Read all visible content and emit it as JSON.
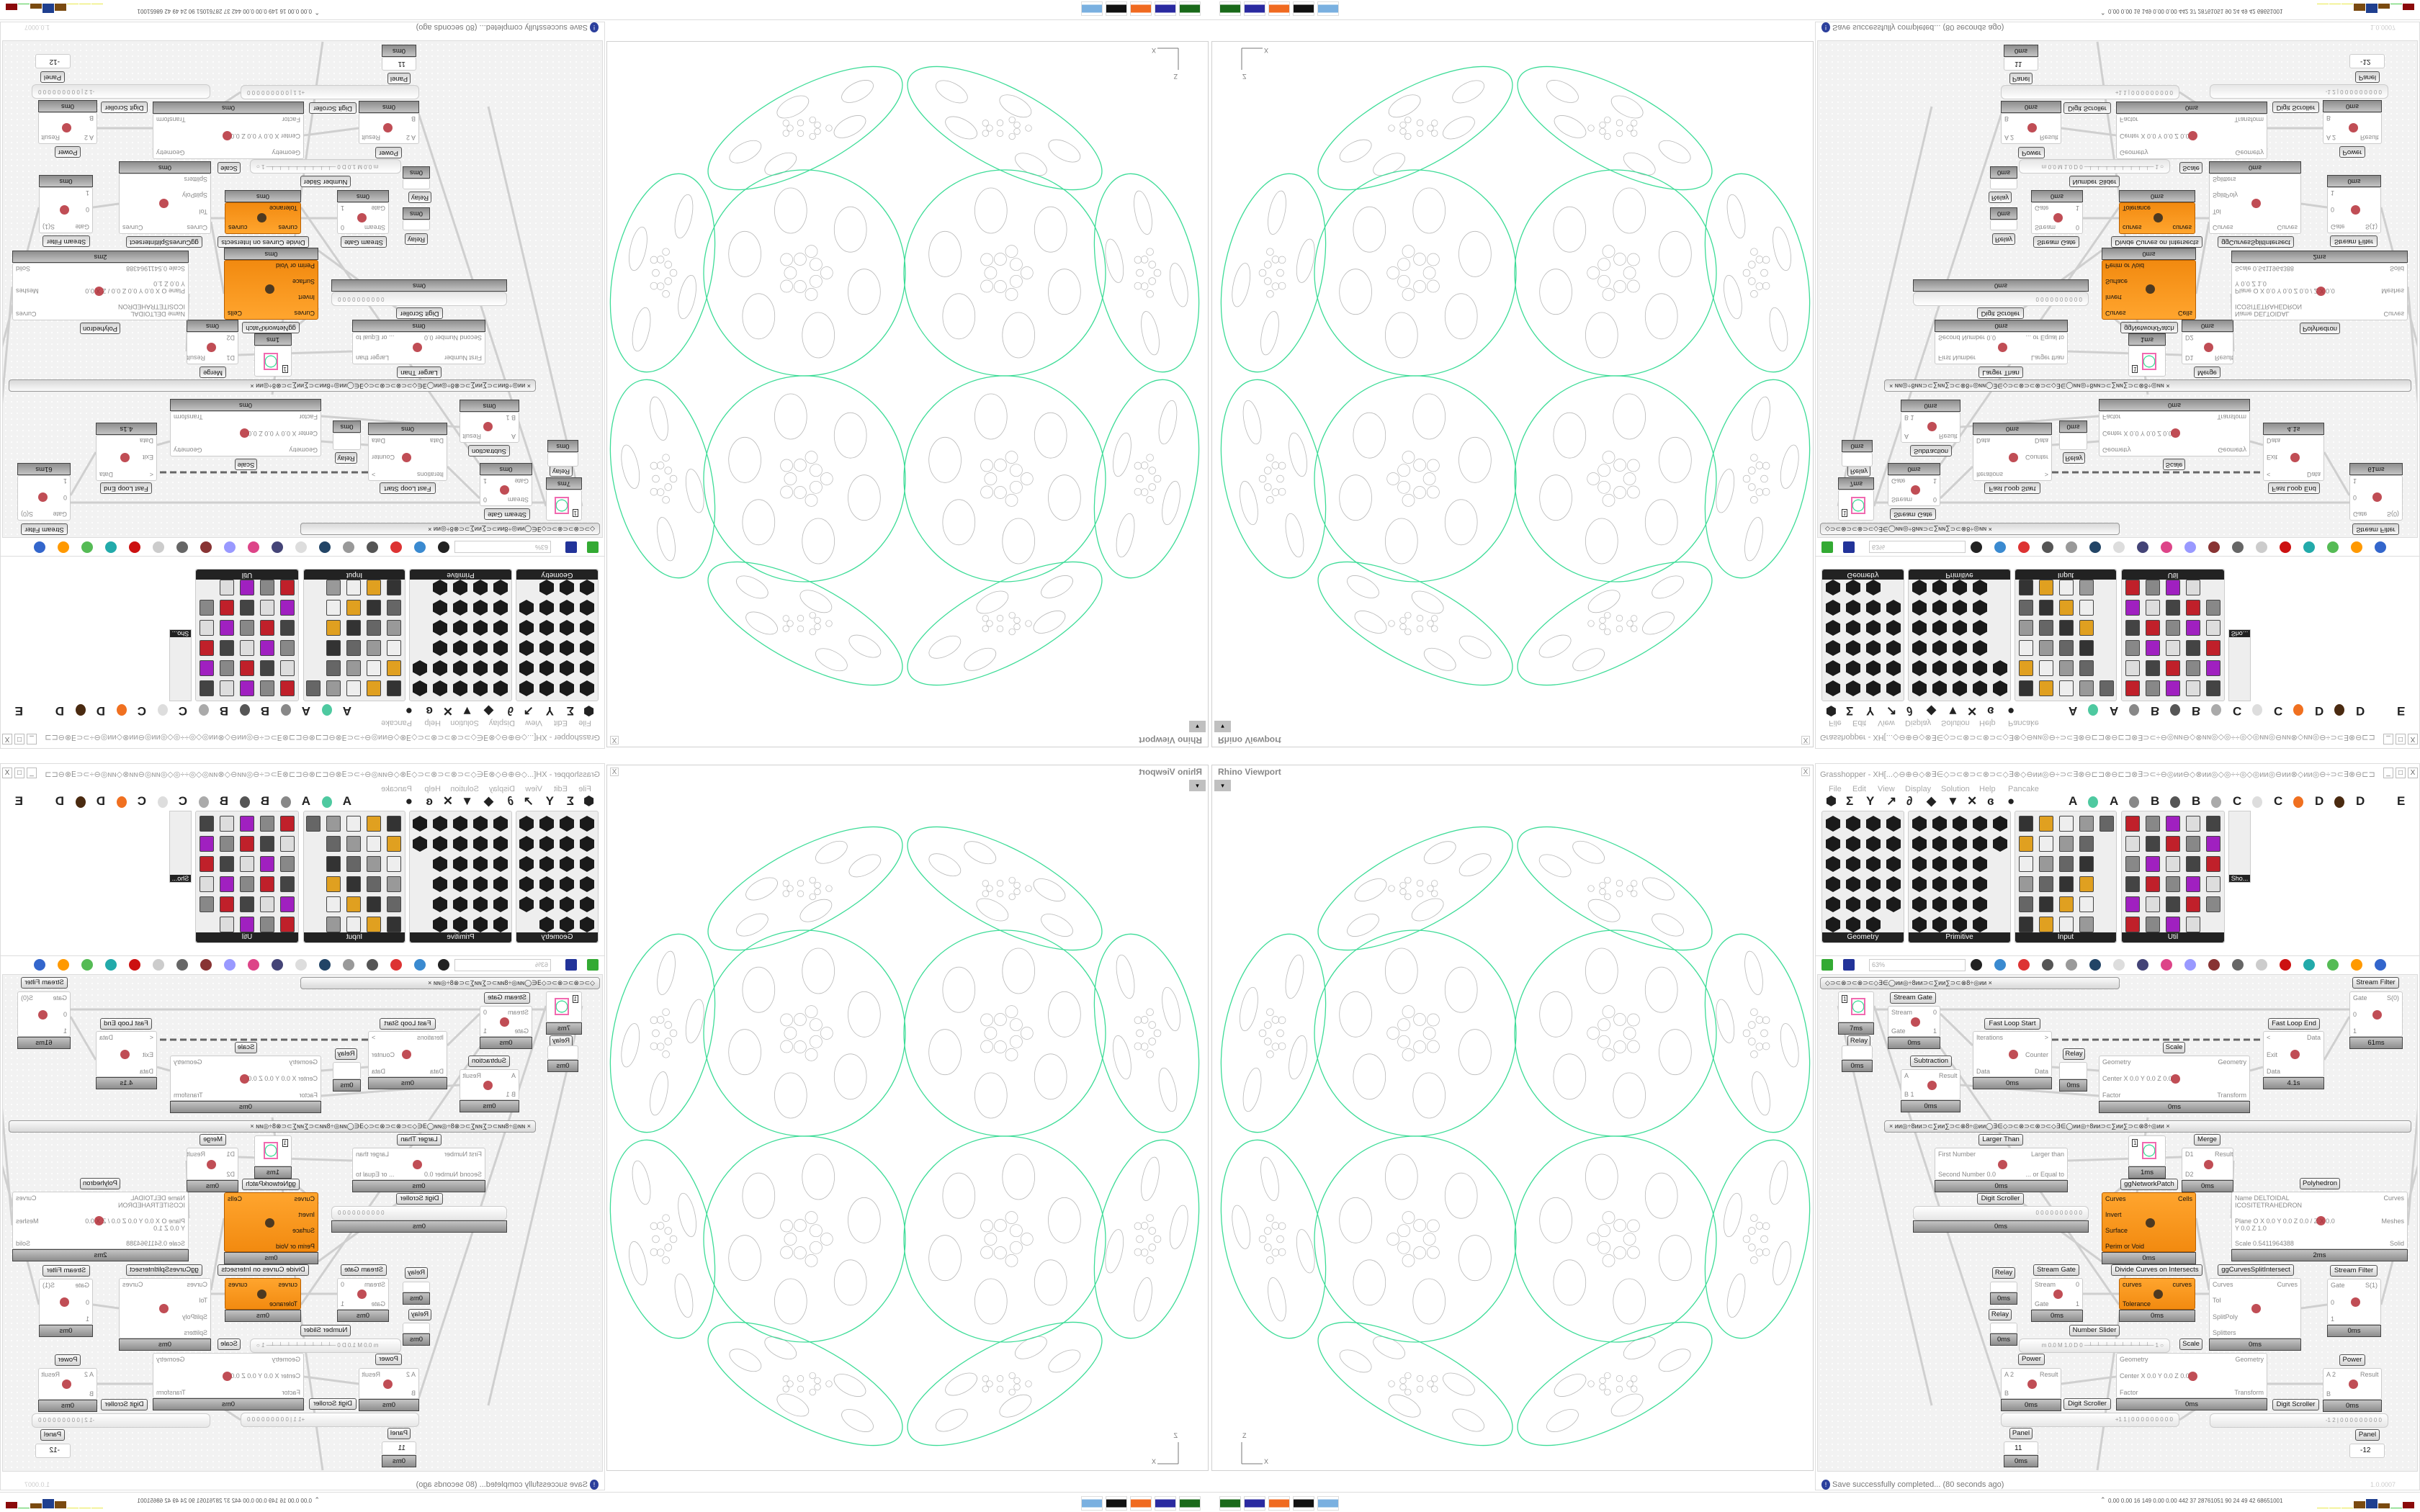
{
  "rhino": {
    "title": "Rhino Viewport",
    "close_label": "X",
    "axis_x": "X",
    "axis_z": "Z",
    "curve_color": "#3ddc97",
    "detail_color": "#b8b8b8"
  },
  "grasshopper": {
    "title": "Grasshopper - XH[...◇⊖⊕⊖◇⊗∃∈◇⊃⊂⊗⊃⊂⊗⊃⊂◇∃⊗◇⊖ии◎⊖÷⊃⊂∃⊗⊖⊏⊐⊗⊖⊏⊐⊗∃⊃⊂÷⊖◎ии⊖◇⊗ии◎◇◎÷÷◎◇◎ии◎⊖ии⊗◇ии◎⊖÷⊃⊂∃⊗⊖⊏⊐...",
    "window_buttons": [
      "_",
      "□",
      "X"
    ],
    "menu": [
      "File",
      "Edit",
      "View",
      "Display",
      "Solution",
      "Help",
      "Pancake"
    ],
    "tab_icons": [
      "hexagon-icon",
      "sigma-icon",
      "y-vector-icon",
      "arrow-icon",
      "curve-icon",
      "surface-icon",
      "mesh-icon",
      "intersect-icon",
      "transform-icon",
      "eye-icon"
    ],
    "tab_icon_glyphs": [
      "⬢",
      "Σ",
      "Y",
      "↗",
      "∂",
      "◆",
      "▼",
      "✕",
      "ɞ",
      "●"
    ],
    "tab_letters": [
      "A",
      "A",
      "B",
      "B",
      "C",
      "C",
      "D",
      "D",
      "E",
      "E"
    ],
    "palette_panels": [
      {
        "label": "Geometry",
        "icon_counts": [
          4,
          4,
          4,
          4,
          4,
          3
        ]
      },
      {
        "label": "Primitive",
        "icon_counts": [
          5,
          5,
          4,
          4,
          4,
          4
        ]
      },
      {
        "label": "Input",
        "icon_counts": [
          5,
          4,
          4,
          4,
          4,
          4
        ]
      },
      {
        "label": "Util",
        "icon_counts": [
          5,
          5,
          5,
          5,
          5,
          4
        ]
      }
    ],
    "shortcut_panel": "Sho...",
    "zoom": "63%",
    "status": "Save successfully completed... (80 seconds ago)",
    "version": "1.0.0007"
  },
  "canvas": {
    "groups": [
      "◇⊃⊂⊗⊃⊂⊗⊃⊂◇∃∈◯ии◎÷8ии⊃⊂∑ии∑⊃⊂⊗8÷◎ии        ×",
      "×      ии◎÷8ии⊃⊂∑ии∑⊃⊂⊗8÷◎ии◯∃∈◇⊃⊂⊗⊃⊂⊗⊃⊂◇∃∈◯ии◎÷8ии⊃⊂∑ии∑⊃⊂⊗8÷◎ии      ×"
    ],
    "nodes": [
      {
        "title": "",
        "inputs": [],
        "outputs": [],
        "value": "1",
        "footer": "7ms"
      },
      {
        "title": "Relay",
        "inputs": [],
        "outputs": [],
        "footer": "0ms"
      },
      {
        "title": "Stream Gate",
        "inputs": [
          "Stream",
          "Gate"
        ],
        "outputs": [
          "0",
          "1"
        ],
        "footer": "0ms"
      },
      {
        "title": "Subtraction",
        "inputs": [
          "A",
          "B 1"
        ],
        "outputs": [
          "Result"
        ],
        "footer": "0ms"
      },
      {
        "title": "Fast Loop Start",
        "inputs": [
          "Iterations",
          "Data"
        ],
        "outputs": [
          ">",
          "Counter",
          "Data"
        ],
        "footer": "0ms"
      },
      {
        "title": "Relay",
        "inputs": [],
        "outputs": [],
        "footer": "0ms"
      },
      {
        "title": "Scale",
        "inputs": [
          "Geometry",
          "Center X 0.0 Y 0.0 Z 0.0",
          "Factor"
        ],
        "outputs": [
          "Geometry",
          "Transform"
        ],
        "footer": "0ms"
      },
      {
        "title": "Fast Loop End",
        "inputs": [
          "<",
          "Exit",
          "Data"
        ],
        "outputs": [
          "Data"
        ],
        "footer": "4.1s"
      },
      {
        "title": "Stream Filter",
        "inputs": [
          "Gate",
          "0",
          "1"
        ],
        "outputs": [
          "S(0)"
        ],
        "footer": "61ms"
      },
      {
        "title": "Larger Than",
        "inputs": [
          "First Number",
          "Second Number 0.0"
        ],
        "outputs": [
          "Larger than",
          "... or Equal to"
        ],
        "footer": "0ms"
      },
      {
        "title": "",
        "inputs": [],
        "outputs": [],
        "value": "1",
        "footer": "1ms"
      },
      {
        "title": "Merge",
        "inputs": [
          "D1",
          "D2"
        ],
        "outputs": [
          "Result"
        ],
        "footer": "0ms"
      },
      {
        "title": "ggNetworkPatch",
        "inputs": [
          "Curves",
          "Invert",
          "Surface",
          "Perim or Void"
        ],
        "outputs": [
          "Cells"
        ],
        "footer": "0ms",
        "orange": true
      },
      {
        "title": "Polyhedron",
        "inputs": [
          "Name DELTOIDAL ICOSITETRAHEDRON",
          "Plane  O X 0.0 Y 0.0 Z 0.0 / Z X 0.0 Y 0.0 Z 1.0",
          "Scale 0.5411964388"
        ],
        "outputs": [
          "Curves",
          "Meshes",
          "Solid"
        ],
        "footer": "2ms"
      },
      {
        "title": "Digit Scroller",
        "slider": "0 0 0 0 0 0 0 0 0 0",
        "footer": "0ms"
      },
      {
        "title": "Relay",
        "inputs": [],
        "outputs": [],
        "footer": "0ms"
      },
      {
        "title": "Stream Gate",
        "inputs": [
          "Stream",
          "Gate"
        ],
        "outputs": [
          "0",
          "1"
        ],
        "footer": "0ms"
      },
      {
        "title": "Divide Curves on Intersects",
        "inputs": [
          "curves",
          "Tolerance"
        ],
        "outputs": [
          "curves"
        ],
        "footer": "0ms",
        "orange": true
      },
      {
        "title": "ggCurvesSplitIntersect",
        "inputs": [
          "Curves",
          "Tol",
          "SplitPoly",
          "Splitters"
        ],
        "outputs": [
          "Curves"
        ],
        "footer": "0ms"
      },
      {
        "title": "Stream Filter",
        "inputs": [
          "Gate",
          "0",
          "1"
        ],
        "outputs": [
          "S(1)"
        ],
        "footer": "0ms"
      },
      {
        "title": "Relay",
        "inputs": [],
        "outputs": [],
        "footer": "0ms"
      },
      {
        "title": "Number Slider",
        "slider": "m 0.0  M 1.0  D 0   ─┴─┴─┴─┴─┴─┴─┴─┴─ 1 ○"
      },
      {
        "title": "Scale",
        "inputs": [
          "Geometry",
          "Center X 0.0 Y 0.0 Z 0.0",
          "Factor"
        ],
        "outputs": [
          "Geometry",
          "Transform"
        ],
        "footer": "0ms"
      },
      {
        "title": "Power",
        "inputs": [
          "A 2",
          "B"
        ],
        "outputs": [
          "Result"
        ],
        "footer": "0ms"
      },
      {
        "title": "Power",
        "inputs": [
          "A 2",
          "B"
        ],
        "outputs": [
          "Result"
        ],
        "footer": "0ms"
      },
      {
        "title": "Digit Scroller",
        "slider": "+1 1 | 0 0 0 0 0 0 0 0 0"
      },
      {
        "title": "Digit Scroller",
        "slider": "-1 2 | 0 0 0 0 0 0 0 0 0"
      },
      {
        "title": "Panel",
        "value": "11",
        "footer": "0ms"
      },
      {
        "title": "Panel",
        "value": "-12"
      }
    ]
  },
  "taskbar": {
    "apps": [
      "download-manager-icon",
      "floppy-64-icon",
      "firefox-icon",
      "inkscape-icon",
      "calculator-icon"
    ],
    "stats": "0.00 0.00  16  149  0.00 0.00  442  37  28761051  90  24  49  42  68651001",
    "meter_colors": [
      "#e8e84a",
      "#e8e84a",
      "#e8e84a",
      "#7a4a10",
      "#1f3f8f",
      "#7a4a10",
      "#4ccc4c",
      "#8b0a0a"
    ]
  }
}
